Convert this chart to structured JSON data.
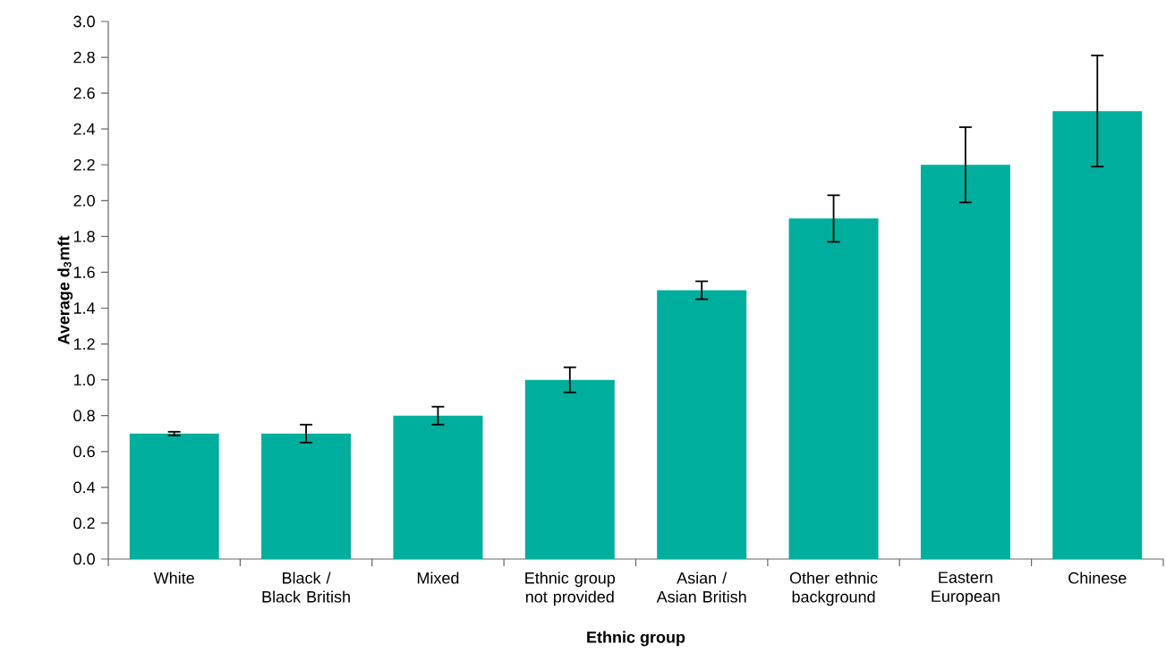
{
  "chart_data": {
    "type": "bar",
    "xlabel": "Ethnic group",
    "ylabel": "Average d$_{3}$mft",
    "categories": [
      "White",
      "Black / Black British",
      "Mixed",
      "Ethnic group not provided",
      "Asian / Asian British",
      "Other ethnic background",
      "Eastern European",
      "Chinese"
    ],
    "values": [
      0.7,
      0.7,
      0.8,
      1.0,
      1.5,
      1.9,
      2.2,
      2.5
    ],
    "errors": [
      [
        0.69,
        0.71
      ],
      [
        0.65,
        0.75
      ],
      [
        0.75,
        0.85
      ],
      [
        0.93,
        1.07
      ],
      [
        1.45,
        1.55
      ],
      [
        1.77,
        2.03
      ],
      [
        1.99,
        2.41
      ],
      [
        2.19,
        2.81
      ]
    ],
    "color": "#00ae9e",
    "ylim": [
      0,
      3.0
    ],
    "yticks": [
      {
        "value": 0,
        "label": "0.0"
      },
      {
        "value": 0.2,
        "label": "0.2"
      },
      {
        "value": 0.4,
        "label": "0.4"
      },
      {
        "value": 0.6,
        "label": "0.6"
      },
      {
        "value": 0.8,
        "label": "0.8"
      },
      {
        "value": 1.0,
        "label": "1.0"
      },
      {
        "value": 1.2,
        "label": "1.2"
      },
      {
        "value": 1.4,
        "label": "1.4"
      },
      {
        "value": 1.6,
        "label": "1.6"
      },
      {
        "value": 1.8,
        "label": "1.8"
      },
      {
        "value": 2.0,
        "label": "2.0"
      },
      {
        "value": 2.2,
        "label": "2.2"
      },
      {
        "value": 2.4,
        "label": "2.4"
      },
      {
        "value": 2.6,
        "label": "2.6"
      },
      {
        "value": 2.8,
        "label": "2.8"
      },
      {
        "value": 3.0,
        "label": "3.0"
      }
    ],
    "grid": false
  }
}
